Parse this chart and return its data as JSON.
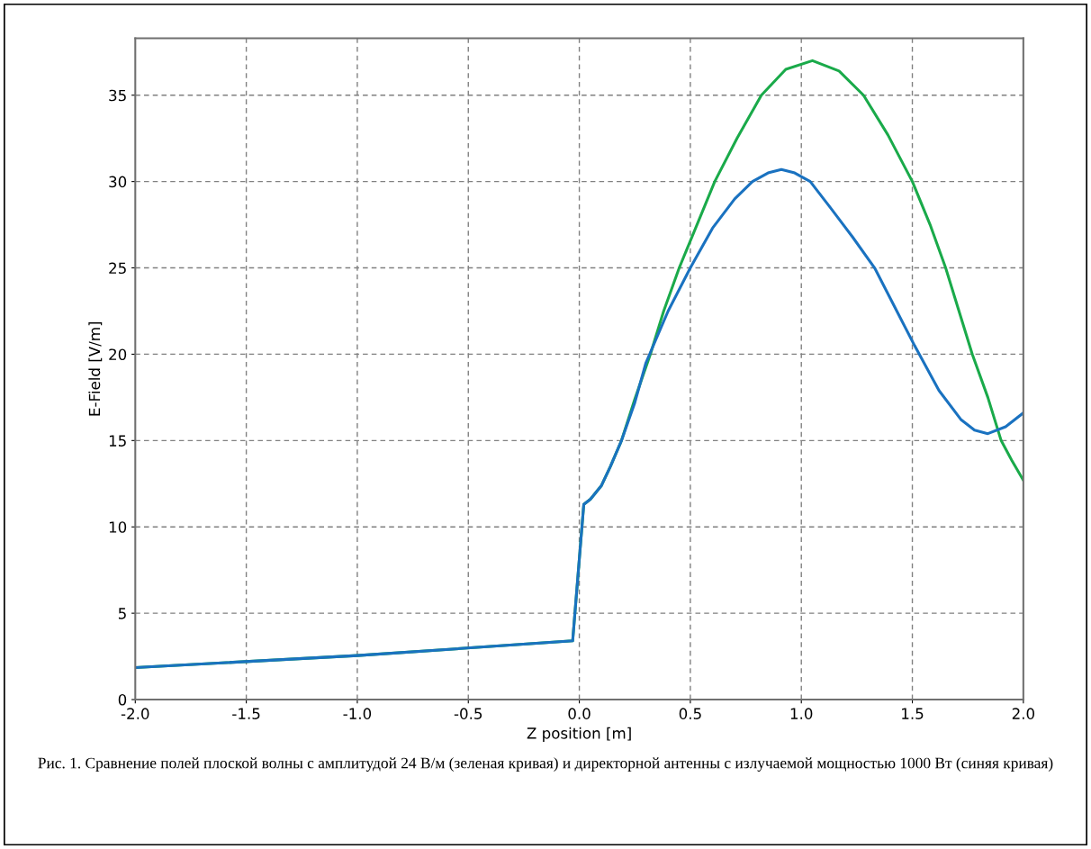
{
  "chart_data": {
    "type": "line",
    "xlabel": "Z position [m]",
    "ylabel": "E-Field [V/m]",
    "xlim": [
      -2.0,
      2.0
    ],
    "ylim": [
      0,
      38.3
    ],
    "xticks": [
      {
        "value": -2.0,
        "label": "-2.0"
      },
      {
        "value": -1.5,
        "label": "-1.5"
      },
      {
        "value": -1.0,
        "label": "-1.0"
      },
      {
        "value": -0.5,
        "label": "-0.5"
      },
      {
        "value": 0.0,
        "label": "0.0"
      },
      {
        "value": 0.5,
        "label": "0.5"
      },
      {
        "value": 1.0,
        "label": "1.0"
      },
      {
        "value": 1.5,
        "label": "1.5"
      },
      {
        "value": 2.0,
        "label": "2.0"
      }
    ],
    "yticks": [
      0,
      5,
      10,
      15,
      20,
      25,
      30,
      35
    ],
    "grid": true,
    "marker": "none",
    "line_style": "solid",
    "series": [
      {
        "color": "#1aaa4a",
        "x": [
          -2.0,
          -1.0,
          -0.03,
          0.02,
          0.05,
          0.1,
          0.14,
          0.19,
          0.25,
          0.32,
          0.38,
          0.45,
          0.53,
          0.61,
          0.71,
          0.82,
          0.93,
          1.05,
          1.17,
          1.28,
          1.39,
          1.5,
          1.58,
          1.65,
          1.71,
          1.77,
          1.84,
          1.9,
          1.95,
          2.0
        ],
        "values": [
          1.85,
          2.55,
          3.4,
          11.3,
          11.6,
          12.4,
          13.5,
          15.0,
          17.4,
          20.0,
          22.5,
          25.0,
          27.5,
          30.0,
          32.5,
          35.0,
          36.5,
          37.0,
          36.4,
          35.0,
          32.7,
          30.0,
          27.5,
          25.0,
          22.5,
          20.0,
          17.5,
          15.0,
          13.8,
          12.7
        ]
      },
      {
        "color": "#1a72c0",
        "x": [
          -2.0,
          -1.0,
          -0.03,
          0.02,
          0.05,
          0.1,
          0.14,
          0.19,
          0.25,
          0.3,
          0.4,
          0.5,
          0.6,
          0.7,
          0.78,
          0.85,
          0.91,
          0.97,
          1.04,
          1.13,
          1.23,
          1.33,
          1.43,
          1.51,
          1.62,
          1.72,
          1.78,
          1.84,
          1.92,
          2.0
        ],
        "values": [
          1.85,
          2.55,
          3.4,
          11.3,
          11.6,
          12.4,
          13.5,
          15.0,
          17.2,
          19.5,
          22.5,
          25.0,
          27.3,
          29.0,
          30.0,
          30.5,
          30.7,
          30.5,
          30.0,
          28.5,
          26.8,
          25.0,
          22.5,
          20.5,
          17.9,
          16.2,
          15.6,
          15.4,
          15.8,
          16.6
        ]
      }
    ],
    "annotations": [
      "Рис. 1. Сравнение полей плоской волны с амплитудой 24 В/м (зеленая кривая) и директорной антенны с излучаемой мощностью 1000 Вт (синяя кривая)"
    ]
  }
}
